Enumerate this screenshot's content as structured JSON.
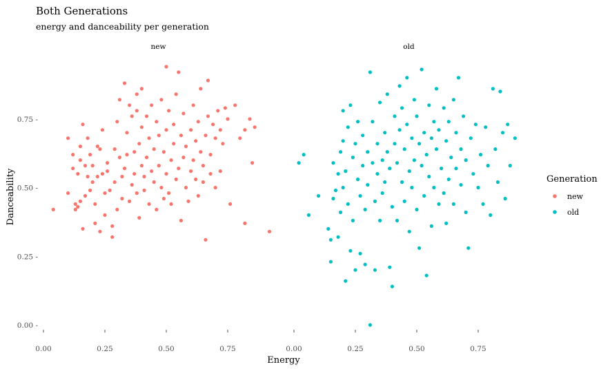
{
  "chart_data": {
    "type": "scatter",
    "title": "Both Generations",
    "subtitle": "energy and danceability per generation",
    "xlabel": "Energy",
    "ylabel": "Danceability",
    "facets": [
      "new",
      "old"
    ],
    "xlim": [
      0,
      1
    ],
    "ylim": [
      0,
      1
    ],
    "x_ticks": [
      0,
      0.25,
      0.5,
      0.75
    ],
    "x_tick_labels": [
      "0.00",
      "0.25",
      "0.50",
      "0.75"
    ],
    "y_ticks": [
      0,
      0.25,
      0.5,
      0.75
    ],
    "y_tick_labels": [
      "0.00 -",
      "0.25 -",
      "0.50 -",
      "0.75 -"
    ],
    "grid": false,
    "legend": {
      "title": "Generation",
      "position": "right",
      "entries": [
        {
          "label": "new",
          "color": "#F8766D"
        },
        {
          "label": "old",
          "color": "#00BFC4"
        }
      ]
    },
    "series": [
      {
        "name": "new",
        "facet": "new",
        "color": "#F8766D",
        "points": [
          [
            0.04,
            0.42
          ],
          [
            0.1,
            0.48
          ],
          [
            0.1,
            0.68
          ],
          [
            0.12,
            0.62
          ],
          [
            0.12,
            0.57
          ],
          [
            0.13,
            0.44
          ],
          [
            0.13,
            0.42
          ],
          [
            0.14,
            0.43
          ],
          [
            0.14,
            0.55
          ],
          [
            0.15,
            0.65
          ],
          [
            0.15,
            0.6
          ],
          [
            0.15,
            0.45
          ],
          [
            0.16,
            0.35
          ],
          [
            0.16,
            0.73
          ],
          [
            0.17,
            0.58
          ],
          [
            0.17,
            0.47
          ],
          [
            0.18,
            0.54
          ],
          [
            0.18,
            0.68
          ],
          [
            0.19,
            0.49
          ],
          [
            0.19,
            0.62
          ],
          [
            0.2,
            0.52
          ],
          [
            0.2,
            0.58
          ],
          [
            0.21,
            0.44
          ],
          [
            0.21,
            0.37
          ],
          [
            0.22,
            0.54
          ],
          [
            0.22,
            0.65
          ],
          [
            0.23,
            0.34
          ],
          [
            0.23,
            0.64
          ],
          [
            0.24,
            0.55
          ],
          [
            0.24,
            0.71
          ],
          [
            0.25,
            0.48
          ],
          [
            0.25,
            0.4
          ],
          [
            0.26,
            0.56
          ],
          [
            0.26,
            0.59
          ],
          [
            0.27,
            0.49
          ],
          [
            0.28,
            0.36
          ],
          [
            0.28,
            0.32
          ],
          [
            0.29,
            0.52
          ],
          [
            0.29,
            0.64
          ],
          [
            0.3,
            0.74
          ],
          [
            0.3,
            0.42
          ],
          [
            0.31,
            0.82
          ],
          [
            0.31,
            0.61
          ],
          [
            0.32,
            0.54
          ],
          [
            0.32,
            0.46
          ],
          [
            0.33,
            0.88
          ],
          [
            0.33,
            0.57
          ],
          [
            0.34,
            0.7
          ],
          [
            0.34,
            0.62
          ],
          [
            0.35,
            0.45
          ],
          [
            0.35,
            0.8
          ],
          [
            0.36,
            0.76
          ],
          [
            0.36,
            0.51
          ],
          [
            0.37,
            0.63
          ],
          [
            0.37,
            0.55
          ],
          [
            0.38,
            0.78
          ],
          [
            0.38,
            0.84
          ],
          [
            0.38,
            0.48
          ],
          [
            0.39,
            0.39
          ],
          [
            0.39,
            0.66
          ],
          [
            0.4,
            0.86
          ],
          [
            0.4,
            0.58
          ],
          [
            0.4,
            0.72
          ],
          [
            0.41,
            0.54
          ],
          [
            0.41,
            0.49
          ],
          [
            0.42,
            0.76
          ],
          [
            0.42,
            0.61
          ],
          [
            0.43,
            0.44
          ],
          [
            0.43,
            0.68
          ],
          [
            0.44,
            0.8
          ],
          [
            0.44,
            0.56
          ],
          [
            0.45,
            0.52
          ],
          [
            0.45,
            0.64
          ],
          [
            0.46,
            0.74
          ],
          [
            0.46,
            0.42
          ],
          [
            0.47,
            0.58
          ],
          [
            0.47,
            0.69
          ],
          [
            0.48,
            0.5
          ],
          [
            0.48,
            0.82
          ],
          [
            0.49,
            0.46
          ],
          [
            0.49,
            0.63
          ],
          [
            0.5,
            0.94
          ],
          [
            0.5,
            0.55
          ],
          [
            0.5,
            0.71
          ],
          [
            0.51,
            0.48
          ],
          [
            0.51,
            0.78
          ],
          [
            0.52,
            0.6
          ],
          [
            0.52,
            0.44
          ],
          [
            0.53,
            0.66
          ],
          [
            0.53,
            0.73
          ],
          [
            0.54,
            0.53
          ],
          [
            0.54,
            0.84
          ],
          [
            0.55,
            0.92
          ],
          [
            0.55,
            0.57
          ],
          [
            0.56,
            0.38
          ],
          [
            0.56,
            0.69
          ],
          [
            0.57,
            0.61
          ],
          [
            0.57,
            0.77
          ],
          [
            0.58,
            0.5
          ],
          [
            0.58,
            0.65
          ],
          [
            0.59,
            0.45
          ],
          [
            0.6,
            0.56
          ],
          [
            0.6,
            0.71
          ],
          [
            0.61,
            0.6
          ],
          [
            0.61,
            0.8
          ],
          [
            0.62,
            0.53
          ],
          [
            0.62,
            0.67
          ],
          [
            0.63,
            0.47
          ],
          [
            0.63,
            0.74
          ],
          [
            0.64,
            0.86
          ],
          [
            0.64,
            0.63
          ],
          [
            0.65,
            0.58
          ],
          [
            0.65,
            0.52
          ],
          [
            0.66,
            0.69
          ],
          [
            0.66,
            0.31
          ],
          [
            0.67,
            0.89
          ],
          [
            0.67,
            0.76
          ],
          [
            0.68,
            0.62
          ],
          [
            0.68,
            0.55
          ],
          [
            0.69,
            0.73
          ],
          [
            0.7,
            0.68
          ],
          [
            0.7,
            0.5
          ],
          [
            0.71,
            0.78
          ],
          [
            0.72,
            0.71
          ],
          [
            0.72,
            0.56
          ],
          [
            0.73,
            0.66
          ],
          [
            0.74,
            0.79
          ],
          [
            0.75,
            0.75
          ],
          [
            0.76,
            0.44
          ],
          [
            0.78,
            0.8
          ],
          [
            0.8,
            0.68
          ],
          [
            0.82,
            0.37
          ],
          [
            0.82,
            0.71
          ],
          [
            0.84,
            0.75
          ],
          [
            0.85,
            0.59
          ],
          [
            0.86,
            0.72
          ],
          [
            0.92,
            0.34
          ]
        ]
      },
      {
        "name": "old",
        "facet": "old",
        "color": "#00BFC4",
        "points": [
          [
            0.02,
            0.59
          ],
          [
            0.04,
            0.62
          ],
          [
            0.06,
            0.4
          ],
          [
            0.1,
            0.47
          ],
          [
            0.14,
            0.35
          ],
          [
            0.15,
            0.31
          ],
          [
            0.15,
            0.23
          ],
          [
            0.16,
            0.46
          ],
          [
            0.16,
            0.59
          ],
          [
            0.17,
            0.49
          ],
          [
            0.18,
            0.55
          ],
          [
            0.18,
            0.32
          ],
          [
            0.19,
            0.63
          ],
          [
            0.19,
            0.41
          ],
          [
            0.2,
            0.78
          ],
          [
            0.2,
            0.67
          ],
          [
            0.2,
            0.5
          ],
          [
            0.21,
            0.16
          ],
          [
            0.21,
            0.56
          ],
          [
            0.22,
            0.44
          ],
          [
            0.22,
            0.72
          ],
          [
            0.23,
            0.8
          ],
          [
            0.23,
            0.27
          ],
          [
            0.24,
            0.61
          ],
          [
            0.24,
            0.38
          ],
          [
            0.25,
            0.2
          ],
          [
            0.25,
            0.66
          ],
          [
            0.26,
            0.53
          ],
          [
            0.26,
            0.74
          ],
          [
            0.27,
            0.47
          ],
          [
            0.27,
            0.26
          ],
          [
            0.28,
            0.58
          ],
          [
            0.28,
            0.69
          ],
          [
            0.29,
            0.22
          ],
          [
            0.29,
            0.42
          ],
          [
            0.3,
            0.63
          ],
          [
            0.3,
            0.51
          ],
          [
            0.31,
            0.92
          ],
          [
            0.31,
            0.0
          ],
          [
            0.32,
            0.59
          ],
          [
            0.32,
            0.74
          ],
          [
            0.33,
            0.45
          ],
          [
            0.33,
            0.2
          ],
          [
            0.34,
            0.66
          ],
          [
            0.34,
            0.55
          ],
          [
            0.35,
            0.81
          ],
          [
            0.35,
            0.38
          ],
          [
            0.36,
            0.6
          ],
          [
            0.36,
            0.48
          ],
          [
            0.37,
            0.7
          ],
          [
            0.37,
            0.52
          ],
          [
            0.38,
            0.84
          ],
          [
            0.38,
            0.63
          ],
          [
            0.39,
            0.21
          ],
          [
            0.39,
            0.57
          ],
          [
            0.4,
            0.14
          ],
          [
            0.4,
            0.43
          ],
          [
            0.41,
            0.76
          ],
          [
            0.41,
            0.66
          ],
          [
            0.42,
            0.59
          ],
          [
            0.42,
            0.38
          ],
          [
            0.43,
            0.87
          ],
          [
            0.43,
            0.71
          ],
          [
            0.44,
            0.52
          ],
          [
            0.44,
            0.79
          ],
          [
            0.45,
            0.45
          ],
          [
            0.45,
            0.64
          ],
          [
            0.46,
            0.9
          ],
          [
            0.46,
            0.73
          ],
          [
            0.47,
            0.56
          ],
          [
            0.47,
            0.34
          ],
          [
            0.48,
            0.68
          ],
          [
            0.48,
            0.5
          ],
          [
            0.49,
            0.82
          ],
          [
            0.49,
            0.6
          ],
          [
            0.5,
            0.42
          ],
          [
            0.5,
            0.76
          ],
          [
            0.51,
            0.28
          ],
          [
            0.51,
            0.66
          ],
          [
            0.52,
            0.93
          ],
          [
            0.52,
            0.58
          ],
          [
            0.53,
            0.7
          ],
          [
            0.53,
            0.47
          ],
          [
            0.54,
            0.62
          ],
          [
            0.54,
            0.18
          ],
          [
            0.55,
            0.8
          ],
          [
            0.55,
            0.54
          ],
          [
            0.56,
            0.68
          ],
          [
            0.56,
            0.36
          ],
          [
            0.57,
            0.74
          ],
          [
            0.57,
            0.5
          ],
          [
            0.58,
            0.86
          ],
          [
            0.58,
            0.64
          ],
          [
            0.59,
            0.44
          ],
          [
            0.59,
            0.71
          ],
          [
            0.6,
            0.57
          ],
          [
            0.61,
            0.79
          ],
          [
            0.61,
            0.48
          ],
          [
            0.62,
            0.67
          ],
          [
            0.62,
            0.37
          ],
          [
            0.63,
            0.74
          ],
          [
            0.63,
            0.53
          ],
          [
            0.64,
            0.61
          ],
          [
            0.65,
            0.82
          ],
          [
            0.65,
            0.44
          ],
          [
            0.66,
            0.7
          ],
          [
            0.66,
            0.57
          ],
          [
            0.67,
            0.9
          ],
          [
            0.68,
            0.64
          ],
          [
            0.68,
            0.51
          ],
          [
            0.69,
            0.76
          ],
          [
            0.7,
            0.6
          ],
          [
            0.7,
            0.41
          ],
          [
            0.71,
            0.28
          ],
          [
            0.72,
            0.68
          ],
          [
            0.73,
            0.55
          ],
          [
            0.74,
            0.73
          ],
          [
            0.75,
            0.5
          ],
          [
            0.76,
            0.62
          ],
          [
            0.77,
            0.44
          ],
          [
            0.78,
            0.72
          ],
          [
            0.79,
            0.58
          ],
          [
            0.8,
            0.4
          ],
          [
            0.81,
            0.86
          ],
          [
            0.82,
            0.64
          ],
          [
            0.83,
            0.52
          ],
          [
            0.84,
            0.85
          ],
          [
            0.85,
            0.7
          ],
          [
            0.86,
            0.46
          ],
          [
            0.87,
            0.73
          ],
          [
            0.88,
            0.58
          ],
          [
            0.9,
            0.68
          ]
        ]
      }
    ]
  }
}
